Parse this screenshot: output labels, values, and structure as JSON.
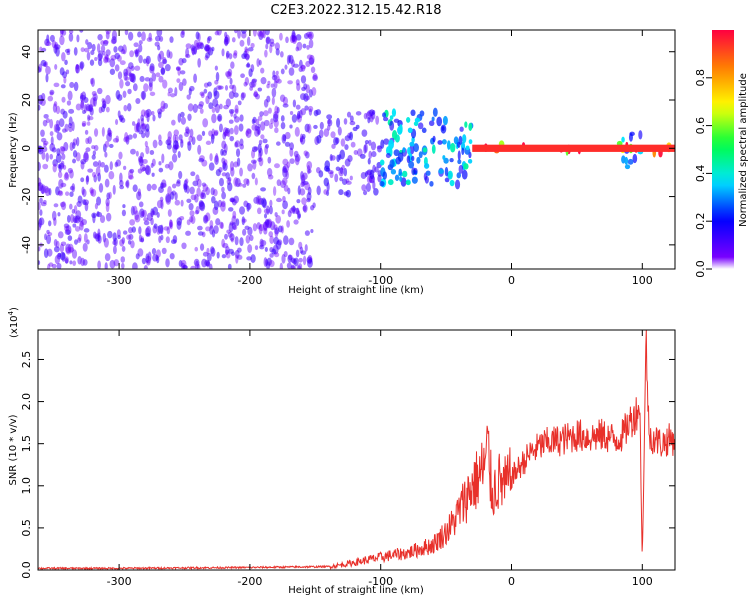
{
  "title": "C2E3.2022.312.15.42.R18",
  "colors": {
    "frame": "#000000",
    "snr_line": "#e8302a",
    "spectrogram_scatter": "#7a4cff"
  },
  "chart_data": [
    {
      "type": "heatmap",
      "xlabel": "Height of straight line (km)",
      "ylabel": "Frequency (Hz)",
      "xlim": [
        -362,
        125
      ],
      "ylim": [
        -50,
        49
      ],
      "x_ticks": [
        -300,
        -200,
        -100,
        0,
        100
      ],
      "x_tick_labels": [
        "-300",
        "-200",
        "-100",
        "0",
        "100"
      ],
      "y_ticks": [
        -40,
        -20,
        0,
        20,
        40
      ],
      "y_tick_labels": [
        "-40",
        "-20",
        "0",
        "20",
        "40"
      ],
      "colorbar": {
        "label": "Normalized spectral amplitude",
        "range": [
          0,
          1
        ],
        "ticks": [
          0,
          0.2,
          0.4,
          0.6,
          0.8
        ],
        "tick_labels": [
          "0.0",
          "0.2",
          "0.4",
          "0.6",
          "0.8"
        ],
        "colormap": [
          "#ffffff",
          "#7a00ff",
          "#0000ff",
          "#00e5ff",
          "#00ff40",
          "#ffff00",
          "#ff8000",
          "#ff0040"
        ]
      },
      "features": [
        {
          "description_x_range": [
            -362,
            -150
          ],
          "freq_range": [
            -50,
            49
          ],
          "amplitude": 0.08
        },
        {
          "description_x_range": [
            -150,
            -100
          ],
          "freq_range": [
            -20,
            15
          ],
          "amplitude": 0.1
        },
        {
          "description_x_range": [
            -100,
            -30
          ],
          "freq_range": [
            -15,
            15
          ],
          "amplitude": 0.3
        },
        {
          "description_x_range": [
            -30,
            125
          ],
          "freq_range": [
            -2,
            2
          ],
          "amplitude": 0.95
        },
        {
          "description_x_range": [
            85,
            100
          ],
          "freq_range": [
            -8,
            6
          ],
          "amplitude": 0.25
        }
      ],
      "grid": false
    },
    {
      "type": "line",
      "xlabel": "Height of straight line (km)",
      "ylabel": "SNR (10 * v/v)",
      "y_scale_label": "(x10",
      "y_scale_exp": "4",
      "xlim": [
        -362,
        125
      ],
      "ylim": [
        0,
        2.85
      ],
      "x_ticks": [
        -300,
        -200,
        -100,
        0,
        100
      ],
      "x_tick_labels": [
        "-300",
        "-200",
        "-100",
        "0",
        "100"
      ],
      "y_ticks": [
        0,
        0.5,
        1.0,
        1.5,
        2.0,
        2.5
      ],
      "y_tick_labels": [
        "0.0",
        "0.5",
        "1.0",
        "1.5",
        "2.0",
        "2.5"
      ],
      "series": [
        {
          "x": [
            -362,
            -300,
            -200,
            -140,
            -130,
            -120,
            -110,
            -100,
            -90,
            -80,
            -70,
            -60,
            -50,
            -45,
            -40,
            -35,
            -30,
            -25,
            -20,
            -18,
            -15,
            -10,
            -5,
            0,
            5,
            10,
            15,
            20,
            25,
            30,
            40,
            50,
            60,
            70,
            80,
            85,
            90,
            95,
            98,
            100,
            103,
            105,
            110,
            115,
            120,
            125
          ],
          "y": [
            0.02,
            0.02,
            0.03,
            0.04,
            0.06,
            0.09,
            0.12,
            0.15,
            0.18,
            0.2,
            0.25,
            0.3,
            0.45,
            0.55,
            0.7,
            0.85,
            1.0,
            1.1,
            1.25,
            1.45,
            0.9,
            1.05,
            1.0,
            1.1,
            1.2,
            1.3,
            1.4,
            1.45,
            1.5,
            1.52,
            1.55,
            1.6,
            1.58,
            1.6,
            1.55,
            1.6,
            1.75,
            1.85,
            2.0,
            0.1,
            2.8,
            1.6,
            1.55,
            1.5,
            1.55,
            1.55
          ]
        }
      ],
      "grid": false
    }
  ]
}
